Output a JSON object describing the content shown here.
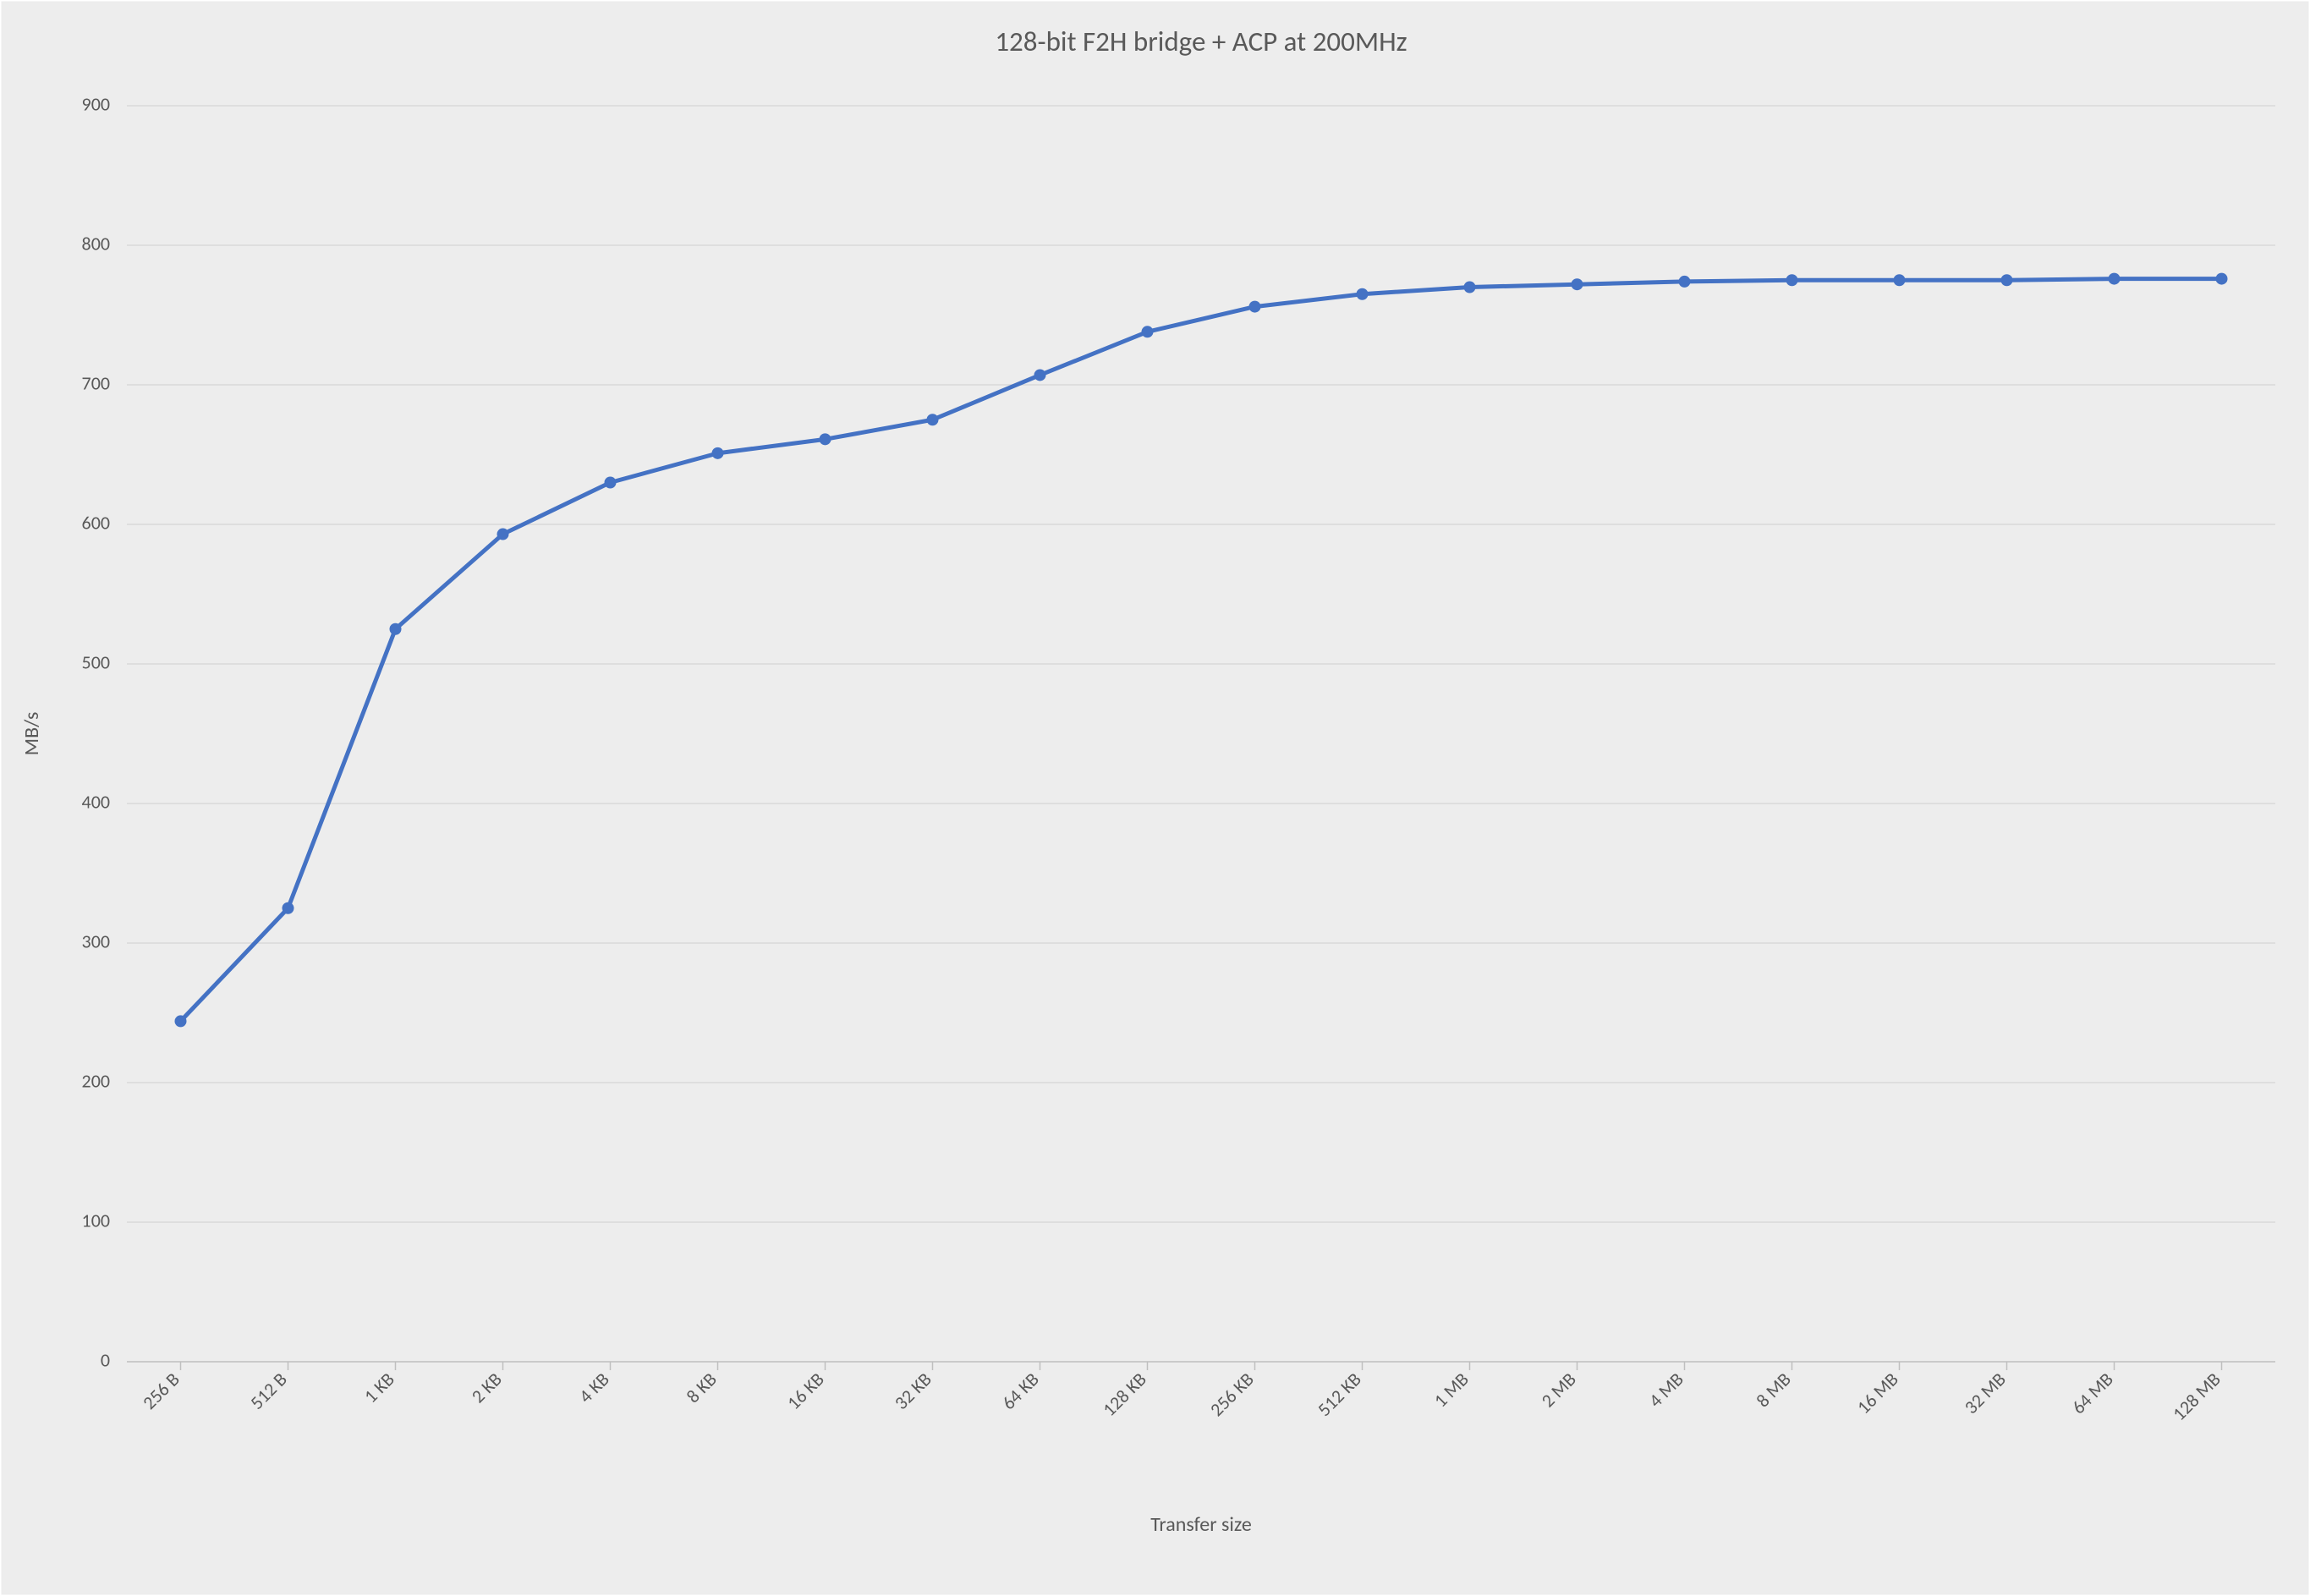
{
  "chart": {
    "type": "line",
    "title": "128-bit F2H bridge + ACP at 200MHz",
    "title_fontsize": 33,
    "title_color": "#595959",
    "x_axis_title": "Transfer size",
    "y_axis_title": "MB/s",
    "axis_title_fontsize": 24,
    "tick_fontsize": 22,
    "background_color": "#ededed",
    "plot_bg_color": "#ededed",
    "border_color": "#ffffff",
    "grid_color": "#d9d9d9",
    "axis_line_color": "#bfbfbf",
    "line_color": "#4472c4",
    "marker_color": "#4472c4",
    "line_width": 5,
    "marker_radius": 7,
    "ylim": [
      0,
      900
    ],
    "ytick_step": 100,
    "yticks": [
      0,
      100,
      200,
      300,
      400,
      500,
      600,
      700,
      800,
      900
    ],
    "categories": [
      "256 B",
      "512 B",
      "1 KB",
      "2 KB",
      "4 KB",
      "8 KB",
      "16 KB",
      "32 KB",
      "64 KB",
      "128 KB",
      "256 KB",
      "512 KB",
      "1 MB",
      "2 MB",
      "4 MB",
      "8 MB",
      "16 MB",
      "32 MB",
      "64 MB",
      "128 MB"
    ],
    "values": [
      244,
      325,
      525,
      593,
      630,
      651,
      661,
      675,
      707,
      738,
      756,
      765,
      770,
      772,
      774,
      775,
      775,
      775,
      776,
      776
    ]
  }
}
